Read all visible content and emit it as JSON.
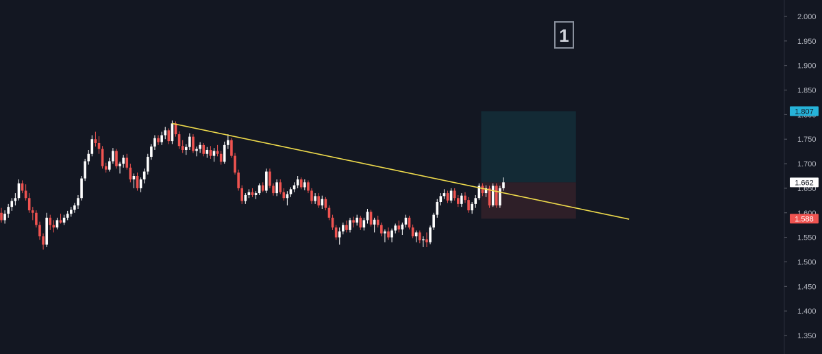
{
  "colors": {
    "background": "#131722",
    "up_candle": "#ffffff",
    "down_candle": "#ef5350",
    "trendline": "#f0dc4c",
    "target_zone": "#132a35",
    "stop_zone": "#2e1f28",
    "target_tag": "#26b3d9",
    "stop_tag": "#ef5350",
    "axis_text": "#b2b5be"
  },
  "marker": {
    "label": "1"
  },
  "chart_data": {
    "type": "candlestick",
    "y_axis": {
      "position": "right",
      "ylim": [
        1.3,
        2.02
      ],
      "ticks": [
        "2.000",
        "1.950",
        "1.900",
        "1.850",
        "1.800",
        "1.750",
        "1.700",
        "1.650",
        "1.600",
        "1.550",
        "1.500",
        "1.450",
        "1.400",
        "1.350"
      ]
    },
    "price_labels": {
      "target": {
        "value": 1.807,
        "text": "1.807"
      },
      "current": {
        "value": 1.662,
        "text": "1.662"
      },
      "stop": {
        "value": 1.588,
        "text": "1.588"
      }
    },
    "position_tool": {
      "entry": 1.662,
      "target": 1.807,
      "stop": 1.588,
      "start_bar": 138,
      "end_bar": 164
    },
    "trendline": {
      "start": {
        "bar": 49,
        "price": 1.782
      },
      "end": {
        "bar": 180,
        "price": 1.587
      }
    },
    "candles": [
      [
        1.6,
        1.61,
        1.58,
        1.585
      ],
      [
        1.585,
        1.605,
        1.578,
        1.598
      ],
      [
        1.598,
        1.618,
        1.59,
        1.612
      ],
      [
        1.612,
        1.63,
        1.604,
        1.624
      ],
      [
        1.624,
        1.64,
        1.615,
        1.63
      ],
      [
        1.63,
        1.668,
        1.625,
        1.66
      ],
      [
        1.66,
        1.666,
        1.64,
        1.645
      ],
      [
        1.645,
        1.658,
        1.625,
        1.63
      ],
      [
        1.63,
        1.64,
        1.6,
        1.605
      ],
      [
        1.605,
        1.612,
        1.585,
        1.6
      ],
      [
        1.6,
        1.605,
        1.57,
        1.575
      ],
      [
        1.575,
        1.582,
        1.545,
        1.552
      ],
      [
        1.552,
        1.558,
        1.525,
        1.535
      ],
      [
        1.535,
        1.6,
        1.53,
        1.59
      ],
      [
        1.59,
        1.596,
        1.565,
        1.575
      ],
      [
        1.575,
        1.585,
        1.56,
        1.57
      ],
      [
        1.57,
        1.59,
        1.566,
        1.585
      ],
      [
        1.585,
        1.598,
        1.578,
        1.58
      ],
      [
        1.58,
        1.596,
        1.575,
        1.59
      ],
      [
        1.59,
        1.604,
        1.585,
        1.598
      ],
      [
        1.598,
        1.612,
        1.592,
        1.606
      ],
      [
        1.606,
        1.62,
        1.6,
        1.615
      ],
      [
        1.615,
        1.636,
        1.608,
        1.63
      ],
      [
        1.63,
        1.675,
        1.625,
        1.67
      ],
      [
        1.67,
        1.71,
        1.665,
        1.705
      ],
      [
        1.705,
        1.728,
        1.698,
        1.72
      ],
      [
        1.72,
        1.758,
        1.715,
        1.75
      ],
      [
        1.75,
        1.765,
        1.735,
        1.742
      ],
      [
        1.742,
        1.756,
        1.72,
        1.73
      ],
      [
        1.73,
        1.736,
        1.69,
        1.695
      ],
      [
        1.695,
        1.702,
        1.682,
        1.688
      ],
      [
        1.688,
        1.712,
        1.684,
        1.705
      ],
      [
        1.705,
        1.732,
        1.7,
        1.726
      ],
      [
        1.726,
        1.73,
        1.69,
        1.695
      ],
      [
        1.695,
        1.704,
        1.68,
        1.7
      ],
      [
        1.7,
        1.718,
        1.692,
        1.712
      ],
      [
        1.712,
        1.72,
        1.688,
        1.692
      ],
      [
        1.692,
        1.7,
        1.662,
        1.668
      ],
      [
        1.668,
        1.68,
        1.65,
        1.675
      ],
      [
        1.675,
        1.682,
        1.645,
        1.65
      ],
      [
        1.65,
        1.672,
        1.642,
        1.668
      ],
      [
        1.668,
        1.69,
        1.66,
        1.684
      ],
      [
        1.684,
        1.72,
        1.678,
        1.714
      ],
      [
        1.714,
        1.74,
        1.708,
        1.735
      ],
      [
        1.735,
        1.758,
        1.728,
        1.752
      ],
      [
        1.752,
        1.758,
        1.738,
        1.744
      ],
      [
        1.744,
        1.765,
        1.738,
        1.758
      ],
      [
        1.758,
        1.775,
        1.75,
        1.768
      ],
      [
        1.768,
        1.772,
        1.74,
        1.746
      ],
      [
        1.746,
        1.788,
        1.74,
        1.782
      ],
      [
        1.782,
        1.786,
        1.755,
        1.76
      ],
      [
        1.76,
        1.766,
        1.73,
        1.736
      ],
      [
        1.736,
        1.748,
        1.722,
        1.728
      ],
      [
        1.728,
        1.74,
        1.718,
        1.734
      ],
      [
        1.734,
        1.762,
        1.728,
        1.755
      ],
      [
        1.755,
        1.76,
        1.722,
        1.726
      ],
      [
        1.726,
        1.735,
        1.715,
        1.73
      ],
      [
        1.73,
        1.744,
        1.722,
        1.738
      ],
      [
        1.738,
        1.742,
        1.715,
        1.72
      ],
      [
        1.72,
        1.734,
        1.712,
        1.728
      ],
      [
        1.728,
        1.736,
        1.71,
        1.716
      ],
      [
        1.716,
        1.732,
        1.704,
        1.726
      ],
      [
        1.726,
        1.738,
        1.715,
        1.72
      ],
      [
        1.72,
        1.726,
        1.698,
        1.704
      ],
      [
        1.704,
        1.745,
        1.7,
        1.738
      ],
      [
        1.738,
        1.76,
        1.73,
        1.748
      ],
      [
        1.748,
        1.752,
        1.712,
        1.716
      ],
      [
        1.716,
        1.722,
        1.678,
        1.682
      ],
      [
        1.682,
        1.688,
        1.645,
        1.65
      ],
      [
        1.65,
        1.656,
        1.618,
        1.624
      ],
      [
        1.624,
        1.64,
        1.618,
        1.636
      ],
      [
        1.636,
        1.648,
        1.63,
        1.642
      ],
      [
        1.642,
        1.65,
        1.632,
        1.636
      ],
      [
        1.636,
        1.644,
        1.628,
        1.64
      ],
      [
        1.64,
        1.66,
        1.636,
        1.656
      ],
      [
        1.656,
        1.662,
        1.642,
        1.645
      ],
      [
        1.645,
        1.69,
        1.64,
        1.684
      ],
      [
        1.684,
        1.69,
        1.65,
        1.655
      ],
      [
        1.655,
        1.66,
        1.635,
        1.64
      ],
      [
        1.64,
        1.668,
        1.634,
        1.662
      ],
      [
        1.662,
        1.668,
        1.638,
        1.642
      ],
      [
        1.642,
        1.65,
        1.625,
        1.63
      ],
      [
        1.63,
        1.644,
        1.615,
        1.638
      ],
      [
        1.638,
        1.652,
        1.632,
        1.648
      ],
      [
        1.648,
        1.662,
        1.642,
        1.656
      ],
      [
        1.656,
        1.675,
        1.65,
        1.668
      ],
      [
        1.668,
        1.672,
        1.648,
        1.652
      ],
      [
        1.652,
        1.668,
        1.646,
        1.662
      ],
      [
        1.662,
        1.666,
        1.64,
        1.645
      ],
      [
        1.645,
        1.65,
        1.618,
        1.624
      ],
      [
        1.624,
        1.64,
        1.618,
        1.634
      ],
      [
        1.634,
        1.64,
        1.61,
        1.615
      ],
      [
        1.615,
        1.635,
        1.608,
        1.628
      ],
      [
        1.628,
        1.632,
        1.605,
        1.61
      ],
      [
        1.61,
        1.615,
        1.585,
        1.59
      ],
      [
        1.59,
        1.596,
        1.565,
        1.57
      ],
      [
        1.57,
        1.575,
        1.545,
        1.55
      ],
      [
        1.55,
        1.57,
        1.535,
        1.562
      ],
      [
        1.562,
        1.58,
        1.556,
        1.575
      ],
      [
        1.575,
        1.584,
        1.56,
        1.565
      ],
      [
        1.565,
        1.59,
        1.56,
        1.585
      ],
      [
        1.585,
        1.592,
        1.57,
        1.58
      ],
      [
        1.58,
        1.596,
        1.574,
        1.59
      ],
      [
        1.59,
        1.594,
        1.565,
        1.57
      ],
      [
        1.57,
        1.59,
        1.564,
        1.585
      ],
      [
        1.585,
        1.608,
        1.578,
        1.602
      ],
      [
        1.602,
        1.606,
        1.572,
        1.576
      ],
      [
        1.576,
        1.59,
        1.56,
        1.586
      ],
      [
        1.586,
        1.594,
        1.57,
        1.575
      ],
      [
        1.575,
        1.58,
        1.552,
        1.558
      ],
      [
        1.558,
        1.566,
        1.54,
        1.562
      ],
      [
        1.562,
        1.57,
        1.545,
        1.55
      ],
      [
        1.55,
        1.568,
        1.54,
        1.564
      ],
      [
        1.564,
        1.578,
        1.558,
        1.574
      ],
      [
        1.574,
        1.584,
        1.56,
        1.566
      ],
      [
        1.566,
        1.58,
        1.555,
        1.576
      ],
      [
        1.576,
        1.596,
        1.57,
        1.59
      ],
      [
        1.59,
        1.594,
        1.566,
        1.57
      ],
      [
        1.57,
        1.576,
        1.548,
        1.552
      ],
      [
        1.552,
        1.564,
        1.54,
        1.56
      ],
      [
        1.56,
        1.564,
        1.538,
        1.544
      ],
      [
        1.544,
        1.552,
        1.53,
        1.546
      ],
      [
        1.546,
        1.56,
        1.53,
        1.54
      ],
      [
        1.54,
        1.574,
        1.536,
        1.57
      ],
      [
        1.57,
        1.6,
        1.565,
        1.596
      ],
      [
        1.596,
        1.628,
        1.59,
        1.622
      ],
      [
        1.622,
        1.64,
        1.615,
        1.634
      ],
      [
        1.634,
        1.648,
        1.628,
        1.64
      ],
      [
        1.64,
        1.645,
        1.62,
        1.625
      ],
      [
        1.625,
        1.65,
        1.62,
        1.645
      ],
      [
        1.645,
        1.65,
        1.625,
        1.63
      ],
      [
        1.63,
        1.636,
        1.612,
        1.618
      ],
      [
        1.618,
        1.64,
        1.612,
        1.635
      ],
      [
        1.635,
        1.642,
        1.62,
        1.626
      ],
      [
        1.626,
        1.632,
        1.6,
        1.605
      ],
      [
        1.605,
        1.622,
        1.598,
        1.618
      ],
      [
        1.618,
        1.636,
        1.61,
        1.63
      ],
      [
        1.63,
        1.66,
        1.626,
        1.655
      ],
      [
        1.655,
        1.66,
        1.634,
        1.64
      ],
      [
        1.64,
        1.656,
        1.632,
        1.65
      ],
      [
        1.65,
        1.655,
        1.61,
        1.615
      ],
      [
        1.615,
        1.66,
        1.612,
        1.655
      ],
      [
        1.655,
        1.66,
        1.61,
        1.615
      ],
      [
        1.615,
        1.655,
        1.61,
        1.65
      ],
      [
        1.65,
        1.672,
        1.645,
        1.662
      ]
    ]
  }
}
